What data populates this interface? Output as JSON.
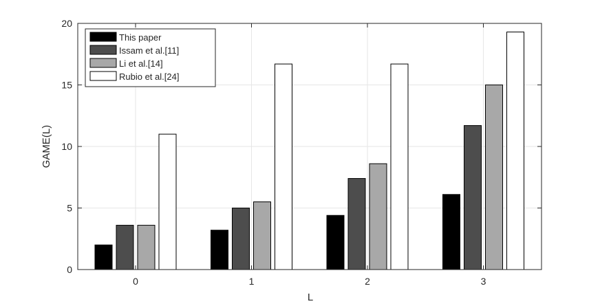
{
  "chart_data": {
    "type": "bar",
    "xlabel": "L",
    "ylabel": "GAME(L)",
    "categories": [
      "0",
      "1",
      "2",
      "3"
    ],
    "ylim": [
      0,
      20
    ],
    "yticks": [
      "0",
      "5",
      "10",
      "15",
      "20"
    ],
    "grid": true,
    "legend_position": "top-left",
    "series": [
      {
        "name": "This paper",
        "values": [
          2.0,
          3.2,
          4.4,
          6.1
        ],
        "color": "#000000"
      },
      {
        "name": "Issam et al.[11]",
        "values": [
          3.6,
          5.0,
          7.4,
          11.7
        ],
        "color": "#4d4d4d"
      },
      {
        "name": "Li et al.[14]",
        "values": [
          3.6,
          5.5,
          8.6,
          15.0
        ],
        "color": "#a8a8a8"
      },
      {
        "name": "Rubio et al.[24]",
        "values": [
          11.0,
          16.7,
          16.7,
          19.3
        ],
        "color": "#ffffff"
      }
    ]
  }
}
